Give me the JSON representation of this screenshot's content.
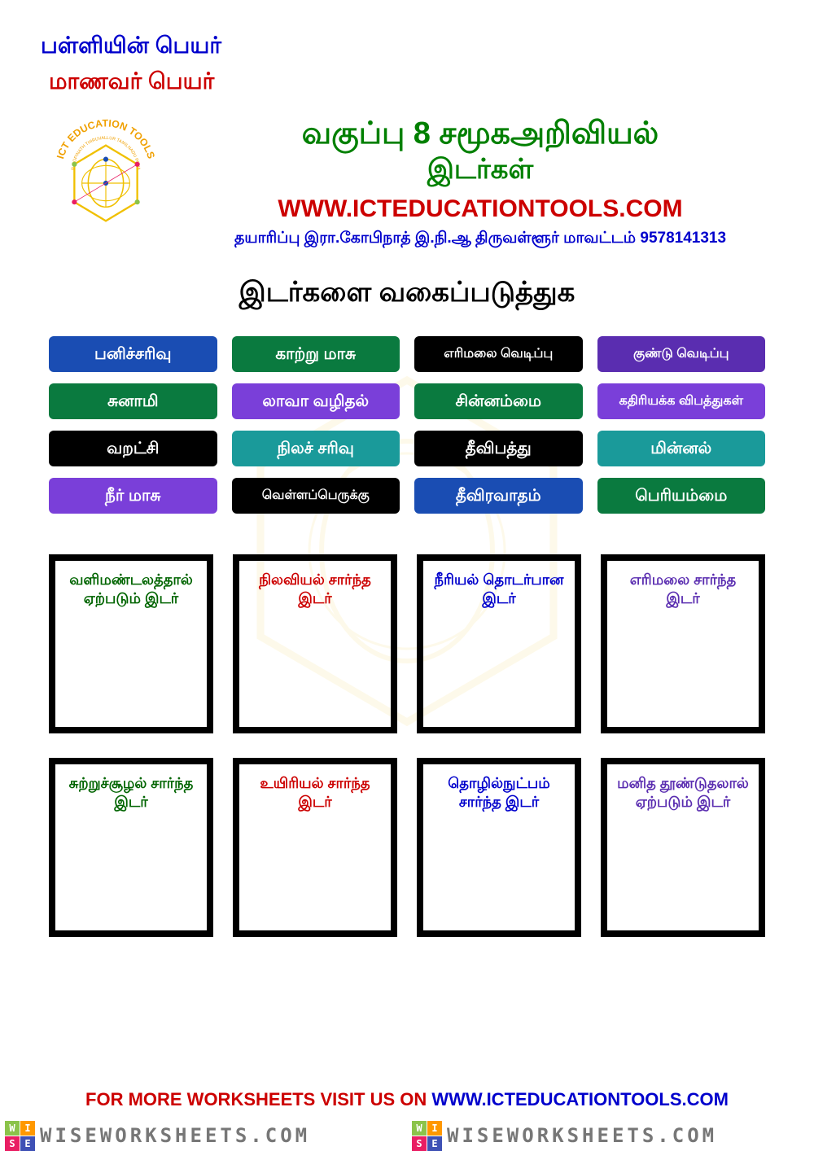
{
  "header": {
    "school_label": "பள்ளியின் பெயர்",
    "student_label": "மாணவர் பெயர்",
    "title_line1": "வகுப்பு 8 சமூகஅறிவியல்",
    "title_line2": "இடர்கள்",
    "website": "WWW.ICTEDUCATIONTOOLS.COM",
    "credits": "தயாரிப்பு இரா.கோபிநாத் இ.நி.ஆ திருவள்ளூர் மாவட்டம் 9578141313",
    "logo_text_top": "ICT EDUCATION TOOLS",
    "logo_text_inner": "R GOPINATH THIRUVALLUR TAMILNADU INDIA"
  },
  "section_title": "இடர்களை வகைப்படுத்துக",
  "colors": {
    "blue": "#1a4db3",
    "green": "#0a7a3f",
    "black": "#000000",
    "purple": "#7a3fd9",
    "darkpurple": "#5a2db0",
    "teal": "#1a9a9a"
  },
  "tags": [
    {
      "label": "பனிச்சரிவு",
      "color": "#1a4db3"
    },
    {
      "label": "காற்று மாசு",
      "color": "#0a7a3f"
    },
    {
      "label": "எரிமலை வெடிப்பு",
      "color": "#000000"
    },
    {
      "label": "குண்டு வெடிப்பு",
      "color": "#5a2db0"
    },
    {
      "label": "சுனாமி",
      "color": "#0a7a3f"
    },
    {
      "label": "லாவா வழிதல்",
      "color": "#7a3fd9"
    },
    {
      "label": "சின்னம்மை",
      "color": "#0a7a3f"
    },
    {
      "label": "கதிரியக்க விபத்துகள்",
      "color": "#7a3fd9"
    },
    {
      "label": "வறட்சி",
      "color": "#000000"
    },
    {
      "label": "நிலச் சரிவு",
      "color": "#1a9a9a"
    },
    {
      "label": "தீவிபத்து",
      "color": "#000000"
    },
    {
      "label": "மின்னல்",
      "color": "#1a9a9a"
    },
    {
      "label": "நீர் மாசு",
      "color": "#7a3fd9"
    },
    {
      "label": "வெள்ளப்பெருக்கு",
      "color": "#000000"
    },
    {
      "label": "தீவிரவாதம்",
      "color": "#1a4db3"
    },
    {
      "label": "பெரியம்மை",
      "color": "#0a7a3f"
    }
  ],
  "box_colors": [
    "#006400",
    "#cc0000",
    "#0000cc",
    "#5a2db0",
    "#006400",
    "#cc0000",
    "#0000cc",
    "#5a2db0"
  ],
  "boxes": [
    "வளிமண்டலத்தால் ஏற்படும் இடர்",
    "நிலவியல் சார்ந்த இடர்",
    "நீரியல் தொடர்பான இடர்",
    "எரிமலை சார்ந்த இடர்",
    "சுற்றுச்சூழல் சார்ந்த இடர்",
    "உயிரியல் சார்ந்த இடர்",
    "தொழில்நுட்பம் சார்ந்த இடர்",
    "மனித தூண்டுதலால் ஏற்படும் இடர்"
  ],
  "footer": {
    "text1": "FOR MORE WORKSHEETS VISIT US ON ",
    "text2": "WWW.ICTEDUCATIONTOOLS.COM"
  },
  "banner": {
    "text": "WISEWORKSHEETS.COM",
    "sq_colors": [
      "#8bc34a",
      "#ff9800",
      "#e91e63",
      "#3f51b5"
    ],
    "sq_letters": [
      "W",
      "I",
      "S",
      "E"
    ]
  }
}
